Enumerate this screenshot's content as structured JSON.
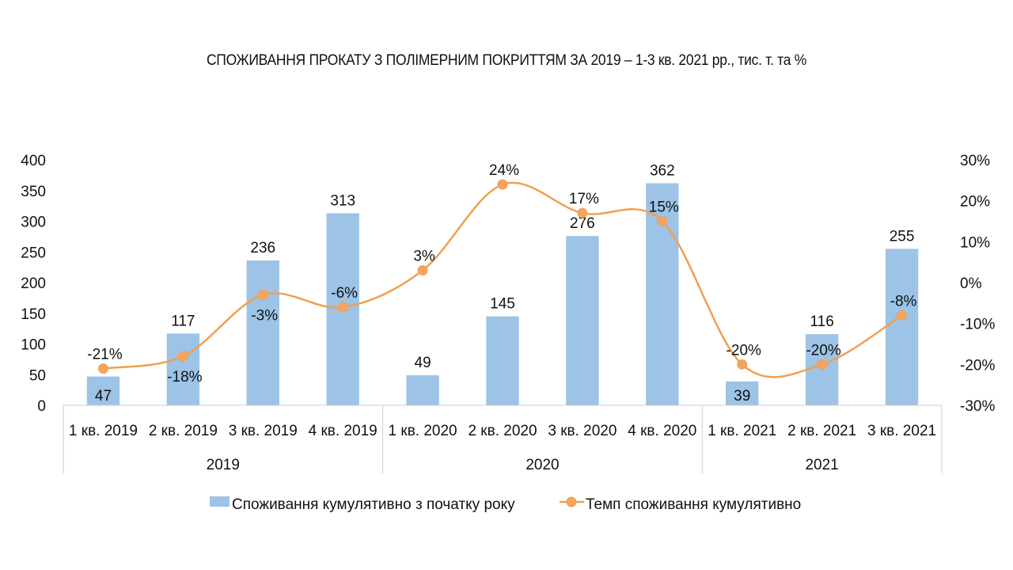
{
  "chart_data": {
    "type": "bar",
    "title": "СПОЖИВАННЯ ПРОКАТУ З ПОЛІМЕРНИМ ПОКРИТТЯМ ЗА 2019 – 1-3 кв. 2021 рр., тис. т. та %",
    "categories": [
      "1 кв. 2019",
      "2 кв. 2019",
      "3 кв. 2019",
      "4 кв. 2019",
      "1 кв. 2020",
      "2 кв. 2020",
      "3 кв. 2020",
      "4 кв. 2020",
      "1 кв. 2021",
      "2 кв. 2021",
      "3 кв. 2021"
    ],
    "groups": [
      {
        "label": "2019",
        "count": 4
      },
      {
        "label": "2020",
        "count": 4
      },
      {
        "label": "2021",
        "count": 3
      }
    ],
    "series": [
      {
        "name": "Споживання кумулятивно з початку року",
        "type": "bar",
        "axis": "left",
        "color": "#9dc3e6",
        "values": [
          47,
          117,
          236,
          313,
          49,
          145,
          276,
          362,
          39,
          116,
          255
        ],
        "labels": [
          "47",
          "117",
          "236",
          "313",
          "49",
          "145",
          "276",
          "362",
          "39",
          "116",
          "255"
        ]
      },
      {
        "name": "Темп споживання кумулятивно",
        "type": "line",
        "axis": "right",
        "color": "#f4a460",
        "line_color": "#f0a050",
        "values": [
          -21,
          -18,
          -3,
          -6,
          3,
          24,
          17,
          15,
          -20,
          -20,
          -8
        ],
        "labels": [
          "-21%",
          "-18%",
          "-3%",
          "-6%",
          "3%",
          "24%",
          "17%",
          "15%",
          "-20%",
          "-20%",
          "-8%"
        ],
        "label_pos": [
          "above",
          "below",
          "below",
          "above",
          "above",
          "above",
          "above",
          "above",
          "above",
          "above",
          "above"
        ]
      }
    ],
    "y_left": {
      "min": 0,
      "max": 400,
      "ticks": [
        "0",
        "50",
        "100",
        "150",
        "200",
        "250",
        "300",
        "350",
        "400"
      ]
    },
    "y_right": {
      "min": -30,
      "max": 30,
      "ticks": [
        "-30%",
        "-20%",
        "-10%",
        "0%",
        "10%",
        "20%",
        "30%"
      ]
    },
    "grid": false,
    "legend": "bottom"
  }
}
